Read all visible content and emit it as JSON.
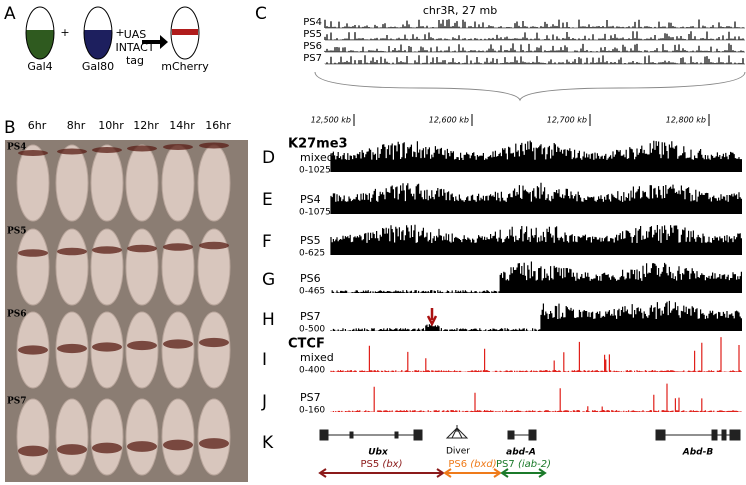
{
  "panel_a": {
    "letter": "A",
    "left": "Gal4",
    "plus": [
      "+",
      "+"
    ],
    "middle": "Gal80",
    "construct": [
      "UAS",
      "INTACT",
      "tag"
    ],
    "right": "mCherry"
  },
  "panel_b": {
    "letter": "B",
    "times": [
      "6hr",
      "8hr",
      "10hr",
      "12hr",
      "14hr",
      "16hr"
    ],
    "rows": [
      "PS4",
      "PS5",
      "PS6",
      "PS7"
    ]
  },
  "panel_c": {
    "letter": "C",
    "title": "chr3R, 27 mb",
    "rows": [
      "PS4",
      "PS5",
      "PS6",
      "PS7"
    ]
  },
  "coordinates": [
    "12,500 kb",
    "12,600 kb",
    "12,700 kb",
    "12,800 kb"
  ],
  "tracks": [
    {
      "letter": "D",
      "mark": "K27me3",
      "label": "mixed",
      "range": "0-1025"
    },
    {
      "letter": "E",
      "label": "PS4",
      "range": "0-1075"
    },
    {
      "letter": "F",
      "label": "PS5",
      "range": "0-625"
    },
    {
      "letter": "G",
      "label": "PS6",
      "range": "0-465"
    },
    {
      "letter": "H",
      "label": "PS7",
      "range": "0-500"
    },
    {
      "letter": "I",
      "mark": "CTCF",
      "label": "mixed",
      "range": "0-400"
    },
    {
      "letter": "J",
      "label": "PS7",
      "range": "0-160"
    }
  ],
  "panel_k": {
    "letter": "K",
    "genes": [
      "Ubx",
      "Diver",
      "abd-A",
      "Abd-B"
    ],
    "domains": [
      {
        "name": "PS5",
        "region": "(bx)"
      },
      {
        "name": "PS6",
        "region": "(bxd)"
      },
      {
        "name": "PS7",
        "region": "(iab-2)"
      }
    ]
  }
}
